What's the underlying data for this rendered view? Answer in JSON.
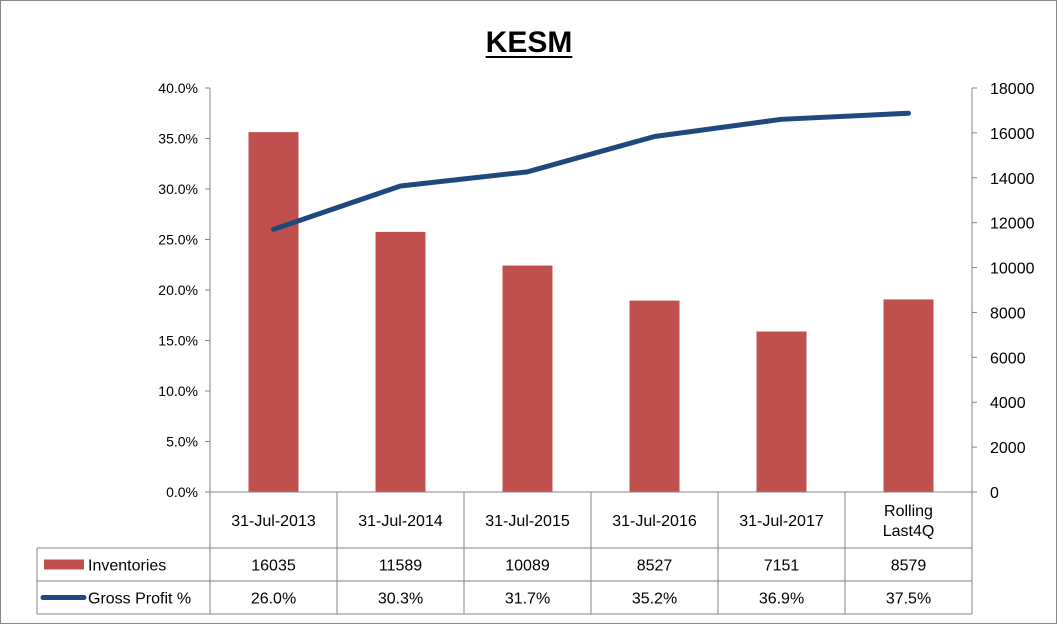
{
  "chart_data": {
    "type": "bar",
    "title": "KESM",
    "categories": [
      "31-Jul-2013",
      "31-Jul-2014",
      "31-Jul-2015",
      "31-Jul-2016",
      "31-Jul-2017",
      "Rolling Last4Q"
    ],
    "category_lines": [
      [
        "31-Jul-2013"
      ],
      [
        "31-Jul-2014"
      ],
      [
        "31-Jul-2015"
      ],
      [
        "31-Jul-2016"
      ],
      [
        "31-Jul-2017"
      ],
      [
        "Rolling",
        "Last4Q"
      ]
    ],
    "series": [
      {
        "name": "Inventories",
        "type": "bar",
        "axis": "right",
        "values": [
          16035,
          11589,
          10089,
          8527,
          7151,
          8579
        ],
        "labels": [
          "16035",
          "11589",
          "10089",
          "8527",
          "7151",
          "8579"
        ],
        "color": "#C0504D"
      },
      {
        "name": "Gross Profit %",
        "type": "line",
        "axis": "left",
        "values": [
          26.0,
          30.3,
          31.7,
          35.2,
          36.9,
          37.5
        ],
        "labels": [
          "26.0%",
          "30.3%",
          "31.7%",
          "35.2%",
          "36.9%",
          "37.5%"
        ],
        "color": "#1F497D"
      }
    ],
    "y_left": {
      "ylim": [
        0,
        40
      ],
      "ticks": [
        "0.0%",
        "5.0%",
        "10.0%",
        "15.0%",
        "20.0%",
        "25.0%",
        "30.0%",
        "35.0%",
        "40.0%"
      ]
    },
    "y_right": {
      "ylim": [
        0,
        18000
      ],
      "ticks": [
        "0",
        "2000",
        "4000",
        "6000",
        "8000",
        "10000",
        "12000",
        "14000",
        "16000",
        "18000"
      ]
    },
    "grid": false,
    "data_table": true
  }
}
